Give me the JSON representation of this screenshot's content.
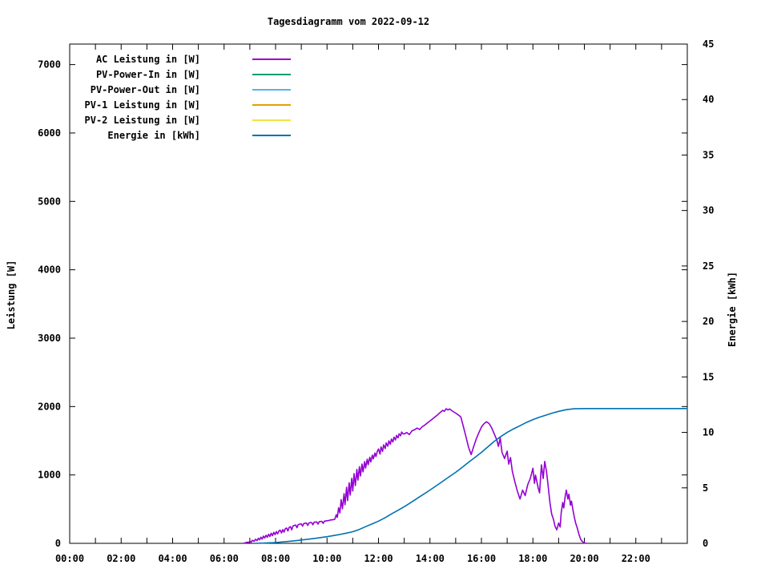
{
  "title": "Tagesdiagramm vom 2022-09-12",
  "axes": {
    "y1_label": "Leistung [W]",
    "y2_label": "Energie [kWh]"
  },
  "legend": {
    "position": "top-left-inside",
    "items": [
      {
        "label": "AC Leistung in [W]",
        "color": "#9400D3"
      },
      {
        "label": "PV-Power-In in [W]",
        "color": "#009E73"
      },
      {
        "label": "PV-Power-Out in [W]",
        "color": "#56B4E9"
      },
      {
        "label": "PV-1 Leistung in [W]",
        "color": "#E69F00"
      },
      {
        "label": "PV-2 Leistung in [W]",
        "color": "#F0E442"
      },
      {
        "label": "Energie in [kWh]",
        "color": "#0072B2"
      }
    ]
  },
  "chart_data": {
    "type": "line",
    "title": "Tagesdiagramm vom 2022-09-12",
    "xlabel": "",
    "x_unit": "hours",
    "xlim": [
      0,
      24
    ],
    "x_tick_step_hours": 1,
    "x_tick_labels": [
      {
        "h": 0,
        "label": "00:00"
      },
      {
        "h": 2,
        "label": "02:00"
      },
      {
        "h": 4,
        "label": "04:00"
      },
      {
        "h": 6,
        "label": "06:00"
      },
      {
        "h": 8,
        "label": "08:00"
      },
      {
        "h": 10,
        "label": "10:00"
      },
      {
        "h": 12,
        "label": "12:00"
      },
      {
        "h": 14,
        "label": "14:00"
      },
      {
        "h": 16,
        "label": "16:00"
      },
      {
        "h": 18,
        "label": "18:00"
      },
      {
        "h": 20,
        "label": "20:00"
      },
      {
        "h": 22,
        "label": "22:00"
      }
    ],
    "y1_axis": {
      "label": "Leistung [W]",
      "lim": [
        0,
        7300
      ],
      "ticks": [
        0,
        1000,
        2000,
        3000,
        4000,
        5000,
        6000,
        7000
      ],
      "mirror_ticks_on_right": true
    },
    "y2_axis": {
      "label": "Energie [kWh]",
      "lim": [
        0,
        45
      ],
      "ticks": [
        0,
        5,
        10,
        15,
        20,
        25,
        30,
        35,
        40,
        45
      ]
    },
    "grid": false,
    "legend_position": "top-left-inside",
    "series": [
      {
        "name": "AC Leistung in [W]",
        "axis": "y1",
        "color": "#9400D3",
        "points": [
          [
            6.75,
            0
          ],
          [
            6.83,
            8
          ],
          [
            6.9,
            18
          ],
          [
            6.95,
            10
          ],
          [
            7.0,
            30
          ],
          [
            7.05,
            18
          ],
          [
            7.1,
            45
          ],
          [
            7.17,
            28
          ],
          [
            7.22,
            60
          ],
          [
            7.28,
            40
          ],
          [
            7.33,
            75
          ],
          [
            7.38,
            52
          ],
          [
            7.43,
            90
          ],
          [
            7.48,
            62
          ],
          [
            7.53,
            105
          ],
          [
            7.58,
            78
          ],
          [
            7.63,
            118
          ],
          [
            7.68,
            88
          ],
          [
            7.73,
            132
          ],
          [
            7.78,
            100
          ],
          [
            7.83,
            148
          ],
          [
            7.88,
            112
          ],
          [
            7.93,
            160
          ],
          [
            7.98,
            128
          ],
          [
            8.03,
            172
          ],
          [
            8.08,
            140
          ],
          [
            8.13,
            182
          ],
          [
            8.18,
            192
          ],
          [
            8.23,
            152
          ],
          [
            8.28,
            200
          ],
          [
            8.33,
            164
          ],
          [
            8.38,
            214
          ],
          [
            8.43,
            224
          ],
          [
            8.48,
            180
          ],
          [
            8.53,
            234
          ],
          [
            8.58,
            244
          ],
          [
            8.63,
            198
          ],
          [
            8.68,
            254
          ],
          [
            8.73,
            262
          ],
          [
            8.78,
            268
          ],
          [
            8.83,
            228
          ],
          [
            8.88,
            274
          ],
          [
            8.93,
            280
          ],
          [
            9.0,
            286
          ],
          [
            9.05,
            252
          ],
          [
            9.1,
            291
          ],
          [
            9.2,
            296
          ],
          [
            9.25,
            262
          ],
          [
            9.3,
            300
          ],
          [
            9.4,
            305
          ],
          [
            9.45,
            272
          ],
          [
            9.5,
            309
          ],
          [
            9.6,
            313
          ],
          [
            9.65,
            282
          ],
          [
            9.7,
            317
          ],
          [
            9.8,
            321
          ],
          [
            9.85,
            292
          ],
          [
            9.9,
            325
          ],
          [
            10.0,
            330
          ],
          [
            10.1,
            336
          ],
          [
            10.15,
            345
          ],
          [
            10.2,
            343
          ],
          [
            10.3,
            352
          ],
          [
            10.36,
            420
          ],
          [
            10.4,
            380
          ],
          [
            10.45,
            520
          ],
          [
            10.5,
            445
          ],
          [
            10.55,
            640
          ],
          [
            10.6,
            505
          ],
          [
            10.66,
            725
          ],
          [
            10.7,
            565
          ],
          [
            10.76,
            820
          ],
          [
            10.8,
            625
          ],
          [
            10.86,
            885
          ],
          [
            10.9,
            705
          ],
          [
            10.96,
            950
          ],
          [
            11.0,
            765
          ],
          [
            11.05,
            1020
          ],
          [
            11.1,
            845
          ],
          [
            11.16,
            1080
          ],
          [
            11.2,
            925
          ],
          [
            11.26,
            1120
          ],
          [
            11.3,
            985
          ],
          [
            11.36,
            1160
          ],
          [
            11.4,
            1045
          ],
          [
            11.46,
            1195
          ],
          [
            11.5,
            1100
          ],
          [
            11.56,
            1230
          ],
          [
            11.6,
            1150
          ],
          [
            11.66,
            1260
          ],
          [
            11.7,
            1190
          ],
          [
            11.76,
            1290
          ],
          [
            11.8,
            1235
          ],
          [
            11.86,
            1320
          ],
          [
            11.9,
            1270
          ],
          [
            11.96,
            1350
          ],
          [
            12.0,
            1380
          ],
          [
            12.06,
            1305
          ],
          [
            12.1,
            1410
          ],
          [
            12.16,
            1345
          ],
          [
            12.2,
            1440
          ],
          [
            12.26,
            1385
          ],
          [
            12.3,
            1468
          ],
          [
            12.36,
            1420
          ],
          [
            12.4,
            1498
          ],
          [
            12.46,
            1450
          ],
          [
            12.5,
            1525
          ],
          [
            12.56,
            1482
          ],
          [
            12.6,
            1552
          ],
          [
            12.66,
            1512
          ],
          [
            12.7,
            1578
          ],
          [
            12.76,
            1542
          ],
          [
            12.8,
            1602
          ],
          [
            12.86,
            1572
          ],
          [
            12.9,
            1628
          ],
          [
            12.96,
            1600
          ],
          [
            13.0,
            1600
          ],
          [
            13.1,
            1620
          ],
          [
            13.2,
            1590
          ],
          [
            13.3,
            1645
          ],
          [
            13.4,
            1660
          ],
          [
            13.5,
            1685
          ],
          [
            13.6,
            1665
          ],
          [
            13.7,
            1705
          ],
          [
            13.8,
            1730
          ],
          [
            13.9,
            1760
          ],
          [
            14.0,
            1790
          ],
          [
            14.1,
            1820
          ],
          [
            14.2,
            1850
          ],
          [
            14.3,
            1880
          ],
          [
            14.4,
            1915
          ],
          [
            14.5,
            1945
          ],
          [
            14.56,
            1930
          ],
          [
            14.63,
            1968
          ],
          [
            14.7,
            1950
          ],
          [
            14.76,
            1965
          ],
          [
            14.83,
            1945
          ],
          [
            14.9,
            1928
          ],
          [
            15.0,
            1904
          ],
          [
            15.1,
            1878
          ],
          [
            15.2,
            1848
          ],
          [
            15.3,
            1705
          ],
          [
            15.4,
            1560
          ],
          [
            15.5,
            1405
          ],
          [
            15.6,
            1298
          ],
          [
            15.7,
            1418
          ],
          [
            15.8,
            1528
          ],
          [
            15.9,
            1618
          ],
          [
            16.0,
            1700
          ],
          [
            16.1,
            1748
          ],
          [
            16.2,
            1778
          ],
          [
            16.3,
            1752
          ],
          [
            16.4,
            1688
          ],
          [
            16.5,
            1598
          ],
          [
            16.6,
            1508
          ],
          [
            16.66,
            1418
          ],
          [
            16.73,
            1538
          ],
          [
            16.8,
            1330
          ],
          [
            16.9,
            1240
          ],
          [
            17.0,
            1348
          ],
          [
            17.06,
            1158
          ],
          [
            17.13,
            1255
          ],
          [
            17.2,
            1058
          ],
          [
            17.3,
            898
          ],
          [
            17.4,
            758
          ],
          [
            17.5,
            648
          ],
          [
            17.6,
            778
          ],
          [
            17.7,
            698
          ],
          [
            17.8,
            858
          ],
          [
            17.9,
            948
          ],
          [
            18.0,
            1098
          ],
          [
            18.06,
            878
          ],
          [
            18.1,
            998
          ],
          [
            18.2,
            818
          ],
          [
            18.26,
            738
          ],
          [
            18.33,
            1148
          ],
          [
            18.4,
            948
          ],
          [
            18.46,
            1198
          ],
          [
            18.53,
            1048
          ],
          [
            18.6,
            818
          ],
          [
            18.66,
            598
          ],
          [
            18.73,
            428
          ],
          [
            18.8,
            348
          ],
          [
            18.86,
            248
          ],
          [
            18.93,
            198
          ],
          [
            19.0,
            298
          ],
          [
            19.06,
            238
          ],
          [
            19.1,
            448
          ],
          [
            19.16,
            598
          ],
          [
            19.2,
            518
          ],
          [
            19.26,
            698
          ],
          [
            19.3,
            778
          ],
          [
            19.36,
            648
          ],
          [
            19.4,
            718
          ],
          [
            19.46,
            558
          ],
          [
            19.5,
            618
          ],
          [
            19.56,
            478
          ],
          [
            19.6,
            398
          ],
          [
            19.66,
            298
          ],
          [
            19.73,
            218
          ],
          [
            19.8,
            118
          ],
          [
            19.86,
            58
          ],
          [
            19.93,
            22
          ],
          [
            20.0,
            6
          ],
          [
            20.1,
            0
          ]
        ]
      },
      {
        "name": "PV-Power-In in [W]",
        "axis": "y1",
        "color": "#009E73",
        "points": []
      },
      {
        "name": "PV-Power-Out in [W]",
        "axis": "y1",
        "color": "#56B4E9",
        "points": []
      },
      {
        "name": "PV-1 Leistung in [W]",
        "axis": "y1",
        "color": "#E69F00",
        "points": []
      },
      {
        "name": "PV-2 Leistung in [W]",
        "axis": "y1",
        "color": "#F0E442",
        "points": []
      },
      {
        "name": "Energie in [kWh]",
        "axis": "y2",
        "color": "#0072B2",
        "points": [
          [
            7.2,
            0
          ],
          [
            7.5,
            0.02
          ],
          [
            8.0,
            0.07
          ],
          [
            8.5,
            0.17
          ],
          [
            8.75,
            0.23
          ],
          [
            9.0,
            0.3
          ],
          [
            9.25,
            0.37
          ],
          [
            9.5,
            0.44
          ],
          [
            9.75,
            0.52
          ],
          [
            10.0,
            0.6
          ],
          [
            10.25,
            0.7
          ],
          [
            10.5,
            0.8
          ],
          [
            10.75,
            0.92
          ],
          [
            11.0,
            1.05
          ],
          [
            11.25,
            1.25
          ],
          [
            11.5,
            1.5
          ],
          [
            11.75,
            1.75
          ],
          [
            12.0,
            2.0
          ],
          [
            12.25,
            2.3
          ],
          [
            12.5,
            2.65
          ],
          [
            12.75,
            2.97
          ],
          [
            13.0,
            3.3
          ],
          [
            13.25,
            3.67
          ],
          [
            13.5,
            4.05
          ],
          [
            13.75,
            4.42
          ],
          [
            14.0,
            4.8
          ],
          [
            14.25,
            5.2
          ],
          [
            14.5,
            5.6
          ],
          [
            14.75,
            6.0
          ],
          [
            15.0,
            6.4
          ],
          [
            15.25,
            6.85
          ],
          [
            15.5,
            7.3
          ],
          [
            15.75,
            7.75
          ],
          [
            16.0,
            8.2
          ],
          [
            16.25,
            8.7
          ],
          [
            16.5,
            9.2
          ],
          [
            16.75,
            9.62
          ],
          [
            17.0,
            10.0
          ],
          [
            17.25,
            10.32
          ],
          [
            17.5,
            10.6
          ],
          [
            17.75,
            10.9
          ],
          [
            18.0,
            11.15
          ],
          [
            18.25,
            11.37
          ],
          [
            18.5,
            11.55
          ],
          [
            18.75,
            11.74
          ],
          [
            19.0,
            11.9
          ],
          [
            19.3,
            12.05
          ],
          [
            19.6,
            12.13
          ],
          [
            20.0,
            12.15
          ],
          [
            24.0,
            12.15
          ]
        ]
      }
    ]
  }
}
